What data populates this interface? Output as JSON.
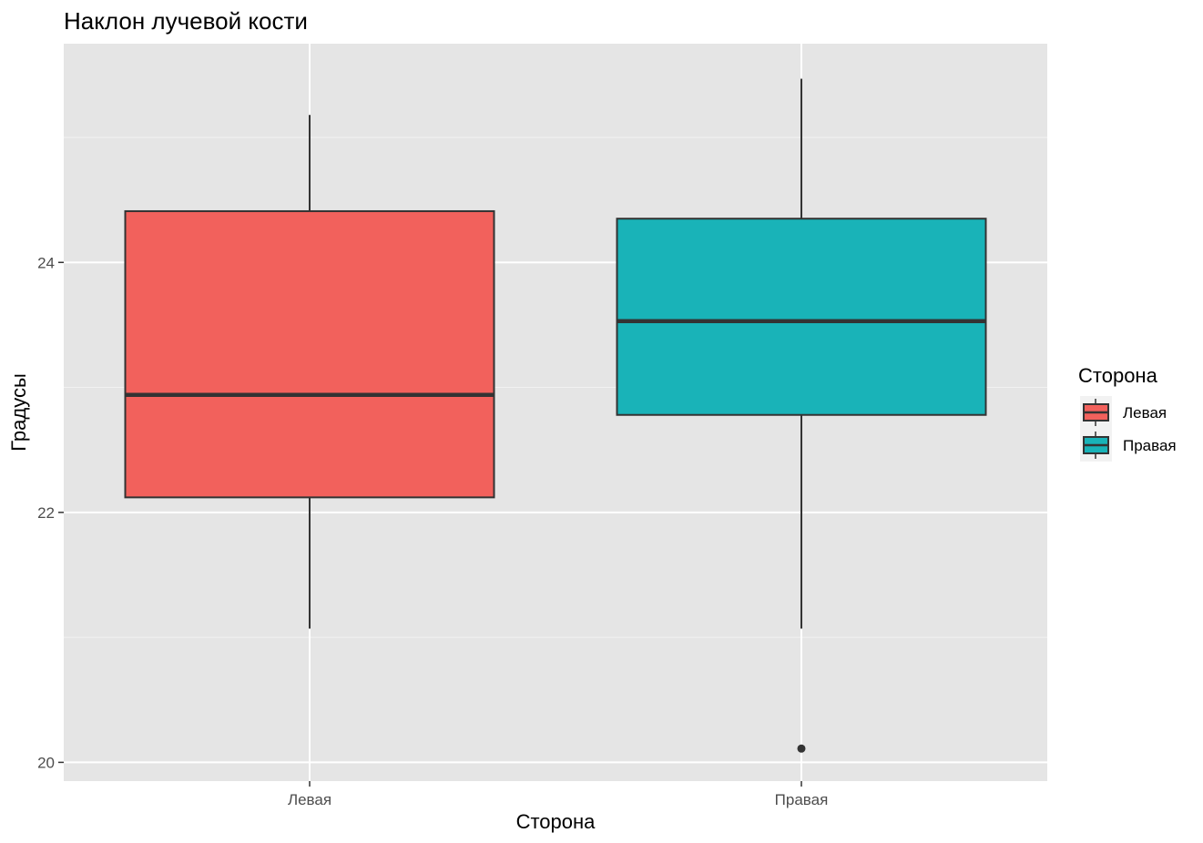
{
  "chart_data": {
    "type": "boxplot",
    "title": "Наклон лучевой кости",
    "xlabel": "Сторона",
    "ylabel": "Градусы",
    "categories": [
      "Левая",
      "Правая"
    ],
    "ylim": [
      19.85,
      25.75
    ],
    "yticks": [
      20,
      22,
      24
    ],
    "grid": true,
    "boxes": [
      {
        "category": "Левая",
        "fill": "#F2615C",
        "lower_whisker": 21.07,
        "q1": 22.12,
        "median": 22.94,
        "q3": 24.41,
        "upper_whisker": 25.18,
        "outliers": []
      },
      {
        "category": "Правая",
        "fill": "#19B3B8",
        "lower_whisker": 21.07,
        "q1": 22.78,
        "median": 23.53,
        "q3": 24.35,
        "upper_whisker": 25.47,
        "outliers": [
          20.11
        ]
      }
    ],
    "legend": {
      "title": "Сторона",
      "position": "right",
      "items": [
        {
          "label": "Левая",
          "color": "#F2615C"
        },
        {
          "label": "Правая",
          "color": "#19B3B8"
        }
      ]
    }
  }
}
